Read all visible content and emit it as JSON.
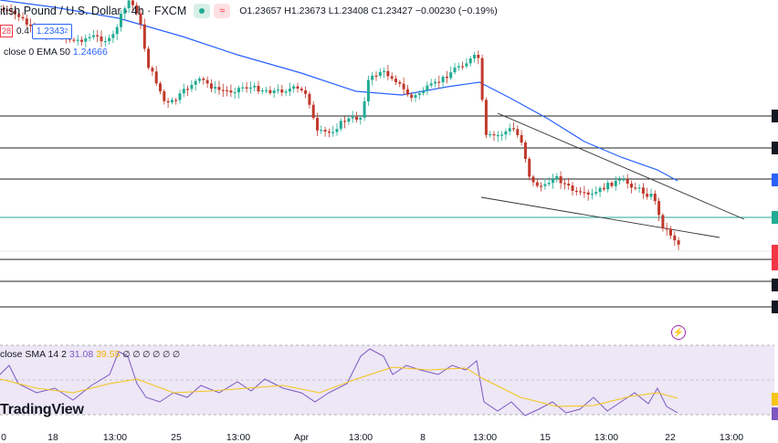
{
  "header": {
    "symbol_title": "itish Pound / U.S. Dollar · 4h · FXCM",
    "ohlc": "O1.23657  H1.23673  L1.23408  C1.23427  −0.00230 (−0.19%)",
    "bid": "28",
    "spread": "0.4",
    "ask": "1.2343",
    "ask_sup": "2"
  },
  "ema_legend": {
    "label": "close 0 EMA 50",
    "value": "1.24666"
  },
  "rsi_legend": {
    "label": "close SMA 14 2",
    "rsi_value": "31.08",
    "sma_value": "39.55",
    "extra": "∅ ∅ ∅ ∅ ∅ ∅"
  },
  "logo": "TradingView",
  "x_axis_ticks": [
    "0",
    "18",
    "13:00",
    "25",
    "13:00",
    "Apr",
    "13:00",
    "8",
    "13:00",
    "15",
    "13:00",
    "22",
    "13:00"
  ],
  "colors": {
    "up": "#22ab94",
    "down": "#c0392b",
    "ema": "#2962ff",
    "rsi": "#7e57c2",
    "rsi_sma": "#f5c518",
    "rsi_band": "#ede7f6"
  },
  "icons": {
    "lightning": "lightning-icon"
  },
  "chart_data": [
    {
      "type": "candlestick",
      "title": "itish Pound / U.S. Dollar · 4h · FXCM",
      "x": [
        "0",
        "18",
        "13:00",
        "25",
        "13:00",
        "Apr",
        "13:00",
        "8",
        "13:00",
        "15",
        "13:00",
        "22",
        "13:00"
      ],
      "last_close": 1.23427,
      "series": [
        {
          "name": "EMA 50"
        }
      ],
      "ema_last": 1.24666,
      "grid": false
    },
    {
      "type": "line",
      "title": "close SMA 14 2",
      "series": [
        {
          "name": "RSI",
          "last": 31.08
        },
        {
          "name": "SMA",
          "last": 39.55
        }
      ]
    }
  ]
}
